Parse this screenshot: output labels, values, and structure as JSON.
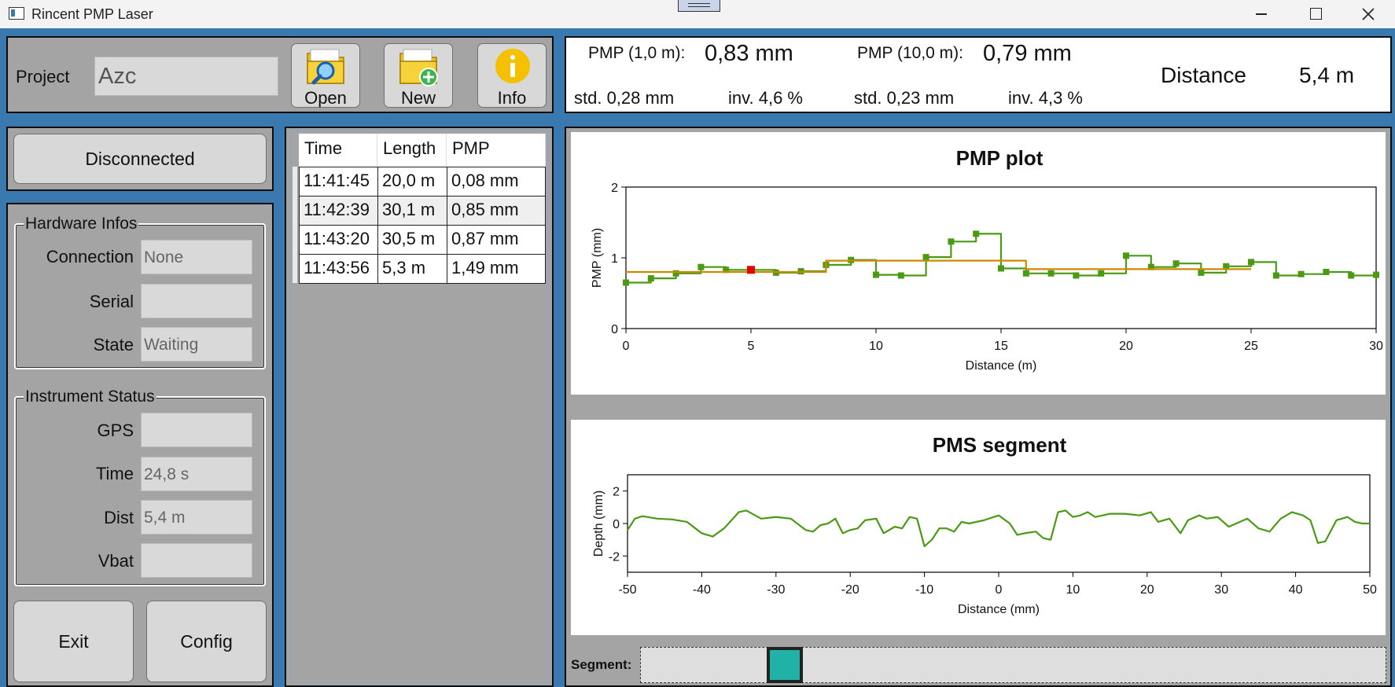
{
  "window": {
    "title": "Rincent PMP Laser"
  },
  "project": {
    "label": "Project",
    "value": "Azc"
  },
  "toolbar": {
    "open_label": "Open",
    "new_label": "New",
    "info_label": "Info"
  },
  "connection_button": "Disconnected",
  "hardware": {
    "title": "Hardware Infos",
    "connection_label": "Connection",
    "connection_value": "None",
    "serial_label": "Serial",
    "serial_value": "",
    "state_label": "State",
    "state_value": "Waiting"
  },
  "instrument": {
    "title": "Instrument Status",
    "gps_label": "GPS",
    "gps_value": "",
    "time_label": "Time",
    "time_value": "24,8 s",
    "dist_label": "Dist",
    "dist_value": "5,4 m",
    "vbat_label": "Vbat",
    "vbat_value": ""
  },
  "footer_buttons": {
    "exit_label": "Exit",
    "config_label": "Config"
  },
  "table": {
    "headers": [
      "Time",
      "Length",
      "PMP"
    ],
    "rows": [
      [
        "11:41:45",
        "20,0 m",
        "0,08 mm"
      ],
      [
        "11:42:39",
        "30,1 m",
        "0,85 mm"
      ],
      [
        "11:43:20",
        "30,5 m",
        "0,87 mm"
      ],
      [
        "11:43:56",
        "5,3 m",
        "1,49 mm"
      ]
    ]
  },
  "stats": {
    "pmp1_label": "PMP (1,0 m):",
    "pmp1_value": "0,83 mm",
    "pmp10_label": "PMP (10,0 m):",
    "pmp10_value": "0,79 mm",
    "std1": "std. 0,28 mm",
    "inv1": "inv. 4,6 %",
    "std10": "std. 0,23 mm",
    "inv10": "inv. 4,3 %",
    "distance_label": "Distance",
    "distance_value": "5,4 m"
  },
  "chart_data": [
    {
      "type": "line",
      "title": "PMP plot",
      "xlabel": "Distance (m)",
      "ylabel": "PMP (mm)",
      "xlim": [
        0,
        30
      ],
      "ylim": [
        0,
        2
      ],
      "xticks": [
        0,
        5,
        10,
        15,
        20,
        25,
        30
      ],
      "yticks": [
        0,
        1,
        2
      ],
      "grid": false,
      "series": [
        {
          "color": "#4a9a14",
          "step": true,
          "x": [
            0,
            1,
            2,
            3,
            4,
            5,
            6,
            7,
            8,
            9,
            10,
            11,
            12,
            13,
            14,
            15,
            16,
            17,
            18,
            19,
            20,
            21,
            22,
            23,
            24,
            25,
            26,
            27,
            28,
            29,
            30
          ],
          "y": [
            0.65,
            0.71,
            0.78,
            0.87,
            0.83,
            0.83,
            0.79,
            0.81,
            0.9,
            0.97,
            0.76,
            0.75,
            1.01,
            1.23,
            1.34,
            0.85,
            0.78,
            0.78,
            0.75,
            0.78,
            1.03,
            0.87,
            0.92,
            0.79,
            0.88,
            0.94,
            0.75,
            0.77,
            0.8,
            0.75,
            0.76
          ]
        },
        {
          "color": "#cc8a00",
          "step": true,
          "x": [
            0,
            8,
            16,
            25
          ],
          "y": [
            0.8,
            0.96,
            0.84,
            0.84
          ]
        }
      ],
      "highlight": {
        "x": 5,
        "y": 0.83,
        "color": "#e60000"
      }
    },
    {
      "type": "line",
      "title": "PMS segment",
      "xlabel": "Distance (mm)",
      "ylabel": "Depth (mm)",
      "xlim": [
        -50,
        50
      ],
      "ylim": [
        -3,
        3
      ],
      "xticks": [
        -50,
        -40,
        -30,
        -20,
        -10,
        0,
        10,
        20,
        30,
        40,
        50
      ],
      "yticks": [
        -2,
        0,
        2
      ],
      "grid": false,
      "series": [
        {
          "color": "#4a9a14",
          "x": [
            -50,
            -49,
            -48,
            -46,
            -44,
            -42,
            -40,
            -38.5,
            -37,
            -35,
            -34,
            -32,
            -30,
            -28,
            -26,
            -25,
            -24,
            -23,
            -22,
            -21,
            -20,
            -19,
            -18,
            -16.5,
            -15.5,
            -14,
            -13,
            -12,
            -11,
            -10,
            -9,
            -8,
            -7,
            -6,
            -5,
            -4,
            -2,
            0,
            1.5,
            2.5,
            3.5,
            5,
            6,
            7,
            8,
            9,
            10,
            11,
            12,
            13,
            14,
            15,
            17,
            19,
            20.5,
            21.5,
            23,
            24.5,
            25.5,
            27,
            28,
            29.5,
            31,
            32,
            33.5,
            35,
            36.5,
            38,
            39.5,
            41,
            42,
            43,
            44,
            45.5,
            47,
            48,
            49,
            50
          ],
          "y": [
            -0.4,
            0.3,
            0.45,
            0.3,
            0.25,
            0.1,
            -0.6,
            -0.8,
            -0.3,
            0.7,
            0.8,
            0.3,
            0.4,
            0.3,
            -0.4,
            -0.5,
            -0.1,
            0,
            0.3,
            -0.6,
            -0.4,
            -0.3,
            0.2,
            0.3,
            -0.6,
            -0.2,
            -0.3,
            0.4,
            0.3,
            -1.4,
            -1.0,
            -0.3,
            -0.3,
            -0.5,
            0.1,
            0,
            0.2,
            0.5,
            0,
            -0.7,
            -0.6,
            -0.5,
            -0.9,
            -1,
            0.7,
            0.8,
            0.4,
            0.5,
            0.7,
            0.4,
            0.5,
            0.6,
            0.6,
            0.5,
            0.7,
            0.1,
            0.3,
            -0.6,
            0.2,
            0.5,
            0.3,
            0.4,
            -0.2,
            0,
            0.3,
            -0.3,
            -0.5,
            0.3,
            0.7,
            0.5,
            0.2,
            -1.2,
            -1.1,
            0.2,
            0.4,
            0.1,
            0,
            0
          ]
        }
      ]
    }
  ],
  "segment": {
    "label": "Segment:"
  }
}
